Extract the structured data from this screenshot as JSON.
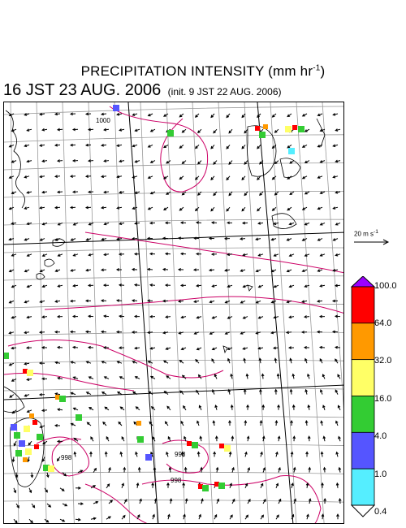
{
  "title": {
    "text": "PRECIPITATION INTENSITY (mm hr",
    "unit_exponent": "-1",
    "close": ")"
  },
  "valid_time": "16 JST 23 AUG. 2006",
  "init_time": "(init. 9 JST 22 AUG. 2006)",
  "reference_vector": {
    "value": "20 m s",
    "exponent": "-1"
  },
  "colorbar": {
    "labels": [
      "100.0",
      "64.0",
      "32.0",
      "16.0",
      "4.0",
      "1.0",
      "0.4"
    ],
    "colors": [
      "#9b00ff",
      "#ff0000",
      "#ff9900",
      "#ffff66",
      "#33cc33",
      "#5555ff",
      "#55eeff",
      "#ffffff"
    ]
  },
  "contour_labels": [
    "1000",
    "998",
    "998",
    "998"
  ],
  "colors": {
    "contour": "#cc0066",
    "grid": "#999999",
    "coast": "#000000"
  }
}
